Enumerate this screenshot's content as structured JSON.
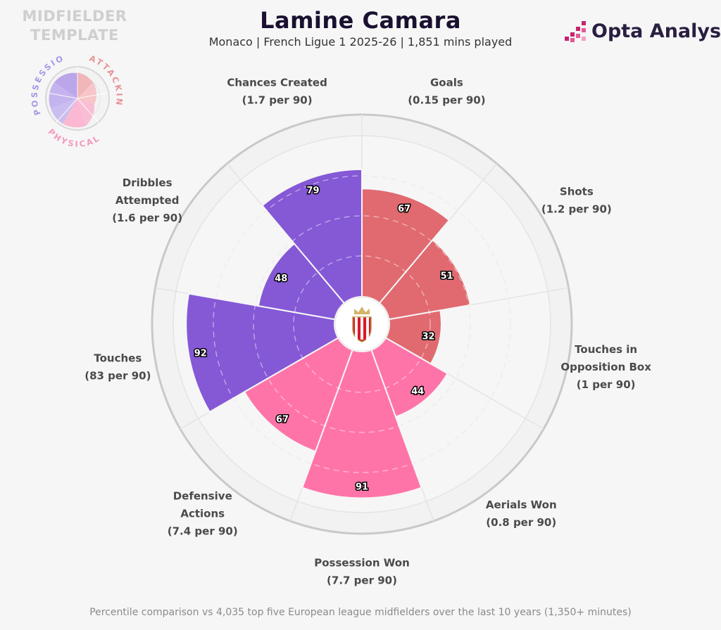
{
  "header": {
    "title": "Lamine Camara",
    "subtitle": "Monaco | French Ligue 1 2025-26 | 1,851 mins played"
  },
  "template": {
    "label_line1": "MIDFIELDER",
    "label_line2": "TEMPLATE",
    "groups": [
      "POSSESSION",
      "ATTACKING",
      "PHYSICAL"
    ]
  },
  "brand": {
    "name": "Opta Analyst"
  },
  "footnote": "Percentile comparison vs 4,035 top five European league midfielders over the last 10 years (1,350+ minutes)",
  "colors": {
    "attacking": "#e06a70",
    "possession": "#8558d6",
    "physical": "#ff74a8",
    "background": "#f6f6f6"
  },
  "chart_data": {
    "type": "polar-bar",
    "range": [
      0,
      100
    ],
    "series": [
      {
        "metric": "Goals",
        "rate": "(0.15 per 90)",
        "percentile": 67,
        "group": "attacking"
      },
      {
        "metric": "Shots",
        "rate": "(1.2 per 90)",
        "percentile": 51,
        "group": "attacking"
      },
      {
        "metric": "Touches in Opposition Box",
        "metric_lines": [
          "Touches in",
          "Opposition Box"
        ],
        "rate": "(1 per 90)",
        "percentile": 32,
        "group": "attacking"
      },
      {
        "metric": "Aerials Won",
        "rate": "(0.8 per 90)",
        "percentile": 44,
        "group": "physical"
      },
      {
        "metric": "Possession Won",
        "rate": "(7.7 per 90)",
        "percentile": 91,
        "group": "physical"
      },
      {
        "metric": "Defensive Actions",
        "metric_lines": [
          "Defensive",
          "Actions"
        ],
        "rate": "(7.4 per 90)",
        "percentile": 67,
        "group": "physical"
      },
      {
        "metric": "Touches",
        "rate": "(83 per 90)",
        "percentile": 92,
        "group": "possession"
      },
      {
        "metric": "Dribbles Attempted",
        "metric_lines": [
          "Dribbles",
          "Attempted"
        ],
        "rate": "(1.6 per 90)",
        "percentile": 48,
        "group": "possession"
      },
      {
        "metric": "Chances Created",
        "rate": "(1.7 per 90)",
        "percentile": 79,
        "group": "possession"
      }
    ]
  }
}
